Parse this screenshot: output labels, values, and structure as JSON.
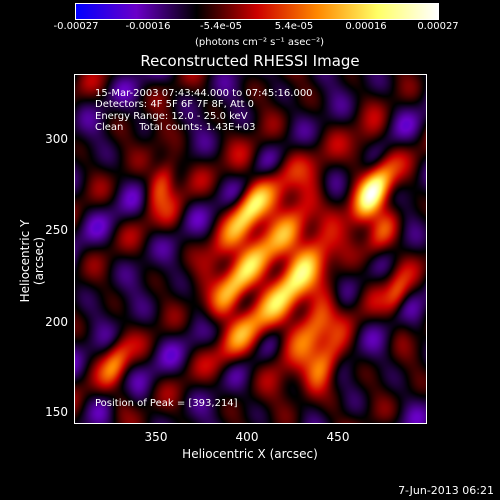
{
  "colorbar": {
    "ticks": [
      "-0.00027",
      "-0.00016",
      "-5.4e-05",
      "5.4e-05",
      "0.00016",
      "0.00027"
    ],
    "unit_label": "(photons cm⁻² s⁻¹ asec⁻²)",
    "colors": [
      "#0000ff",
      "#6a00c8",
      "#000000",
      "#cc0000",
      "#ff8800",
      "#ffff66",
      "#ffffff"
    ]
  },
  "title": "Reconstructed RHESSI Image",
  "info": {
    "time_range": "15-Mar-2003 07:43:44.000 to 07:45:16.000",
    "detectors": "Detectors: 4F 5F 6F 7F 8F, Att 0",
    "energy": "Energy Range: 12.0 - 25.0 keV",
    "clean": "Clean     Total counts: 1.43E+03"
  },
  "peak_label": "Position of Peak = [393,214]",
  "axes": {
    "xlabel": "Heliocentric X (arcsec)",
    "ylabel": "Heliocentric Y (arcsec)",
    "xticks": [
      "350",
      "400",
      "450"
    ],
    "yticks": [
      "300",
      "250",
      "200",
      "150"
    ]
  },
  "datestamp": "7-Jun-2013 06:21"
}
